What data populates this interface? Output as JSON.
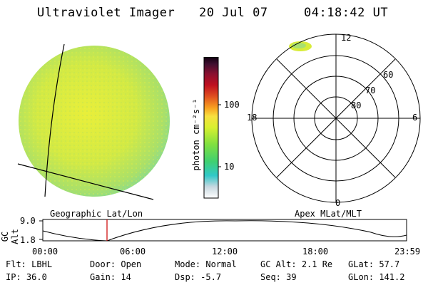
{
  "header": {
    "title": "Ultraviolet Imager",
    "date": "20 Jul 07",
    "time": "04:18:42 UT"
  },
  "colorbar": {
    "label": "photon cm⁻²s⁻¹",
    "ticks": [
      "100",
      "10"
    ]
  },
  "image_left": {
    "caption": "Geographic Lat/Lon"
  },
  "polar_plot": {
    "caption": "Apex MLat/MLT",
    "mlt_labels": {
      "top": "12",
      "left": "18",
      "right": "6",
      "bottom": "0"
    },
    "lat_labels": [
      "60",
      "70",
      "80"
    ]
  },
  "timeline": {
    "ylabel": "GC Alt",
    "ytick_top": "9.0",
    "ytick_bottom": "1.8",
    "xticks": [
      "00:00",
      "06:00",
      "12:00",
      "18:00",
      "23:59"
    ],
    "marker_time": "04:18"
  },
  "info": {
    "row1": [
      {
        "label": "Flt:",
        "value": "LBHL"
      },
      {
        "label": "Door:",
        "value": "Open"
      },
      {
        "label": "Mode:",
        "value": "Normal"
      },
      {
        "label": "GC Alt:",
        "value": "2.1 Re"
      },
      {
        "label": "GLat:",
        "value": "57.7"
      }
    ],
    "row2": [
      {
        "label": "IP:",
        "value": "36.0"
      },
      {
        "label": "Gain:",
        "value": "14"
      },
      {
        "label": "Dsp:",
        "value": "-5.7"
      },
      {
        "label": "Seq:",
        "value": "39"
      },
      {
        "label": "GLon:",
        "value": "141.2"
      }
    ]
  },
  "colors": {
    "disk_base": "#c8e84a",
    "disk_edge": "#7fdc8c",
    "marker": "#cc0000"
  }
}
